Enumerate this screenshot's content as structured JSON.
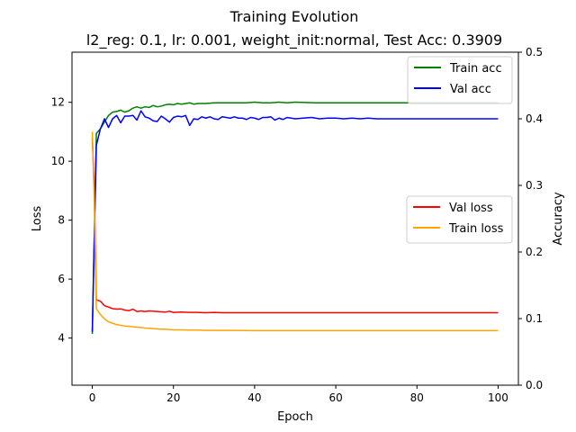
{
  "chart_data": {
    "type": "line",
    "title": "Training Evolution",
    "subtitle": "l2_reg: 0.1, lr: 0.001, weight_init:normal, Test Acc: 0.3909",
    "xlabel": "Epoch",
    "ylabel_left": "Loss",
    "ylabel_right": "Accuracy",
    "xlim": [
      -5,
      105
    ],
    "ylim_left": [
      2.4,
      13.7
    ],
    "ylim_right": [
      0.0,
      0.5
    ],
    "x_ticks": [
      0,
      20,
      40,
      60,
      80,
      100
    ],
    "y_left_ticks": [
      4,
      6,
      8,
      10,
      12
    ],
    "y_right_ticks": [
      0.0,
      0.1,
      0.2,
      0.3,
      0.4,
      0.5
    ],
    "grid": false,
    "legends": [
      {
        "placement": "top-right",
        "entries": [
          "Train acc",
          "Val acc"
        ]
      },
      {
        "placement": "center-right",
        "entries": [
          "Val loss",
          "Train loss"
        ]
      }
    ],
    "series": [
      {
        "name": "Train acc",
        "axis": "right",
        "color": "#008000",
        "x": [
          0,
          1,
          2,
          3,
          4,
          5,
          6,
          7,
          8,
          9,
          10,
          11,
          12,
          13,
          14,
          15,
          16,
          17,
          18,
          19,
          20,
          21,
          22,
          23,
          24,
          25,
          26,
          28,
          30,
          32,
          34,
          36,
          38,
          40,
          42,
          44,
          46,
          48,
          50,
          55,
          60,
          65,
          70,
          75,
          80,
          85,
          90,
          95,
          100
        ],
        "y": [
          0.077,
          0.378,
          0.385,
          0.395,
          0.405,
          0.41,
          0.411,
          0.413,
          0.41,
          0.412,
          0.416,
          0.418,
          0.416,
          0.418,
          0.417,
          0.42,
          0.418,
          0.419,
          0.421,
          0.422,
          0.421,
          0.423,
          0.422,
          0.423,
          0.424,
          0.422,
          0.423,
          0.423,
          0.424,
          0.424,
          0.424,
          0.424,
          0.424,
          0.425,
          0.424,
          0.424,
          0.425,
          0.424,
          0.425,
          0.424,
          0.424,
          0.424,
          0.424,
          0.424,
          0.424,
          0.424,
          0.424,
          0.424,
          0.424
        ]
      },
      {
        "name": "Val acc",
        "axis": "right",
        "color": "#0000ff",
        "x": [
          0,
          1,
          2,
          3,
          4,
          5,
          6,
          7,
          8,
          9,
          10,
          11,
          12,
          13,
          14,
          15,
          16,
          17,
          18,
          19,
          20,
          21,
          22,
          23,
          24,
          25,
          26,
          27,
          28,
          29,
          30,
          31,
          32,
          33,
          34,
          35,
          36,
          37,
          38,
          39,
          40,
          41,
          42,
          43,
          44,
          45,
          46,
          47,
          48,
          49,
          50,
          52,
          54,
          56,
          58,
          60,
          62,
          64,
          66,
          68,
          70,
          75,
          80,
          85,
          90,
          95,
          100
        ],
        "y": [
          0.08,
          0.36,
          0.385,
          0.4,
          0.387,
          0.4,
          0.405,
          0.394,
          0.404,
          0.404,
          0.405,
          0.398,
          0.412,
          0.403,
          0.401,
          0.397,
          0.396,
          0.404,
          0.4,
          0.395,
          0.402,
          0.404,
          0.403,
          0.405,
          0.39,
          0.4,
          0.399,
          0.403,
          0.401,
          0.403,
          0.4,
          0.399,
          0.403,
          0.402,
          0.401,
          0.403,
          0.401,
          0.401,
          0.399,
          0.402,
          0.401,
          0.399,
          0.402,
          0.402,
          0.403,
          0.398,
          0.401,
          0.399,
          0.402,
          0.401,
          0.4,
          0.401,
          0.402,
          0.4,
          0.401,
          0.401,
          0.4,
          0.401,
          0.4,
          0.401,
          0.4,
          0.4,
          0.4,
          0.4,
          0.4,
          0.4,
          0.4
        ]
      },
      {
        "name": "Val loss",
        "axis": "left",
        "color": "#ff0000",
        "x": [
          0,
          0.5,
          1,
          2,
          3,
          4,
          5,
          6,
          7,
          8,
          9,
          10,
          11,
          12,
          13,
          14,
          15,
          16,
          17,
          18,
          19,
          20,
          22,
          24,
          26,
          28,
          30,
          32,
          34,
          36,
          38,
          40,
          45,
          50,
          60,
          70,
          80,
          90,
          100
        ],
        "y": [
          10.8,
          9.0,
          5.3,
          5.25,
          5.1,
          5.05,
          5.0,
          4.98,
          4.99,
          4.95,
          4.93,
          4.98,
          4.9,
          4.92,
          4.9,
          4.92,
          4.91,
          4.9,
          4.89,
          4.88,
          4.91,
          4.87,
          4.88,
          4.87,
          4.87,
          4.86,
          4.87,
          4.86,
          4.86,
          4.86,
          4.86,
          4.86,
          4.86,
          4.86,
          4.86,
          4.86,
          4.86,
          4.86,
          4.86
        ]
      },
      {
        "name": "Train loss",
        "axis": "left",
        "color": "#ffa500",
        "x": [
          0,
          0.5,
          1,
          2,
          3,
          4,
          5,
          6,
          7,
          8,
          9,
          10,
          11,
          12,
          13,
          14,
          15,
          16,
          17,
          18,
          19,
          20,
          22,
          24,
          26,
          28,
          30,
          35,
          40,
          50,
          60,
          70,
          80,
          90,
          100
        ],
        "y": [
          11.0,
          8.5,
          5.0,
          4.8,
          4.65,
          4.55,
          4.5,
          4.46,
          4.43,
          4.41,
          4.4,
          4.38,
          4.37,
          4.36,
          4.34,
          4.33,
          4.32,
          4.31,
          4.3,
          4.3,
          4.29,
          4.28,
          4.28,
          4.27,
          4.27,
          4.26,
          4.26,
          4.26,
          4.25,
          4.25,
          4.25,
          4.25,
          4.25,
          4.25,
          4.25
        ]
      }
    ]
  }
}
